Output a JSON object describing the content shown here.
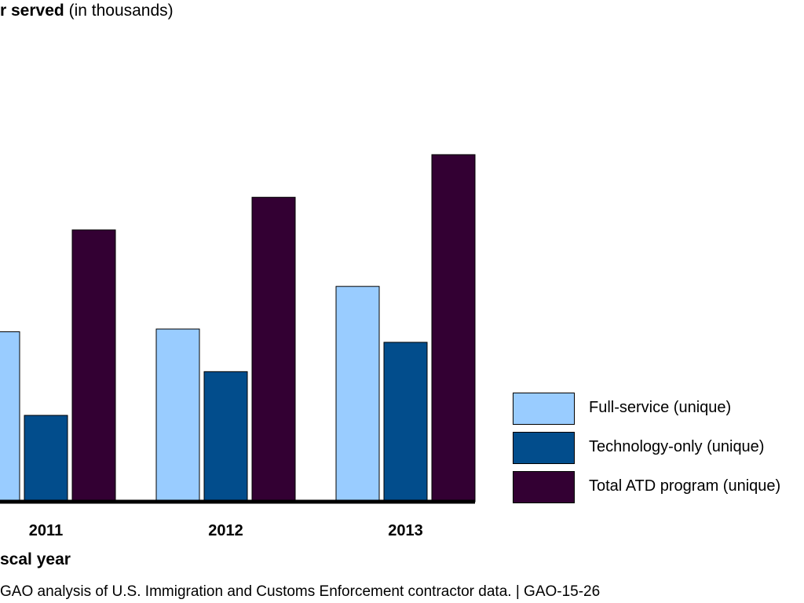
{
  "title": {
    "strong": "r served",
    "weak": "(in thousands)"
  },
  "source": "GAO analysis of U.S. Immigration and Customs Enforcement contractor data.  |  GAO-15-26",
  "chart_data": {
    "type": "bar",
    "title": "r served (in thousands)",
    "xlabel": "scal year",
    "ylabel": "",
    "categories": [
      "2011",
      "2012",
      "2013"
    ],
    "series": [
      {
        "name": "Full-service (unique)",
        "color": "#99CCFF",
        "values": [
          30.7,
          31.2,
          38.9
        ]
      },
      {
        "name": "Technology-only (unique)",
        "color": "#024D8C",
        "values": [
          15.6,
          23.5,
          28.8
        ]
      },
      {
        "name": "Total ATD program (unique)",
        "color": "#330033",
        "values": [
          49.1,
          55.0,
          62.7
        ]
      }
    ],
    "ylim": [
      0,
      75
    ],
    "grid": false,
    "legend_position": "bottom-right"
  }
}
